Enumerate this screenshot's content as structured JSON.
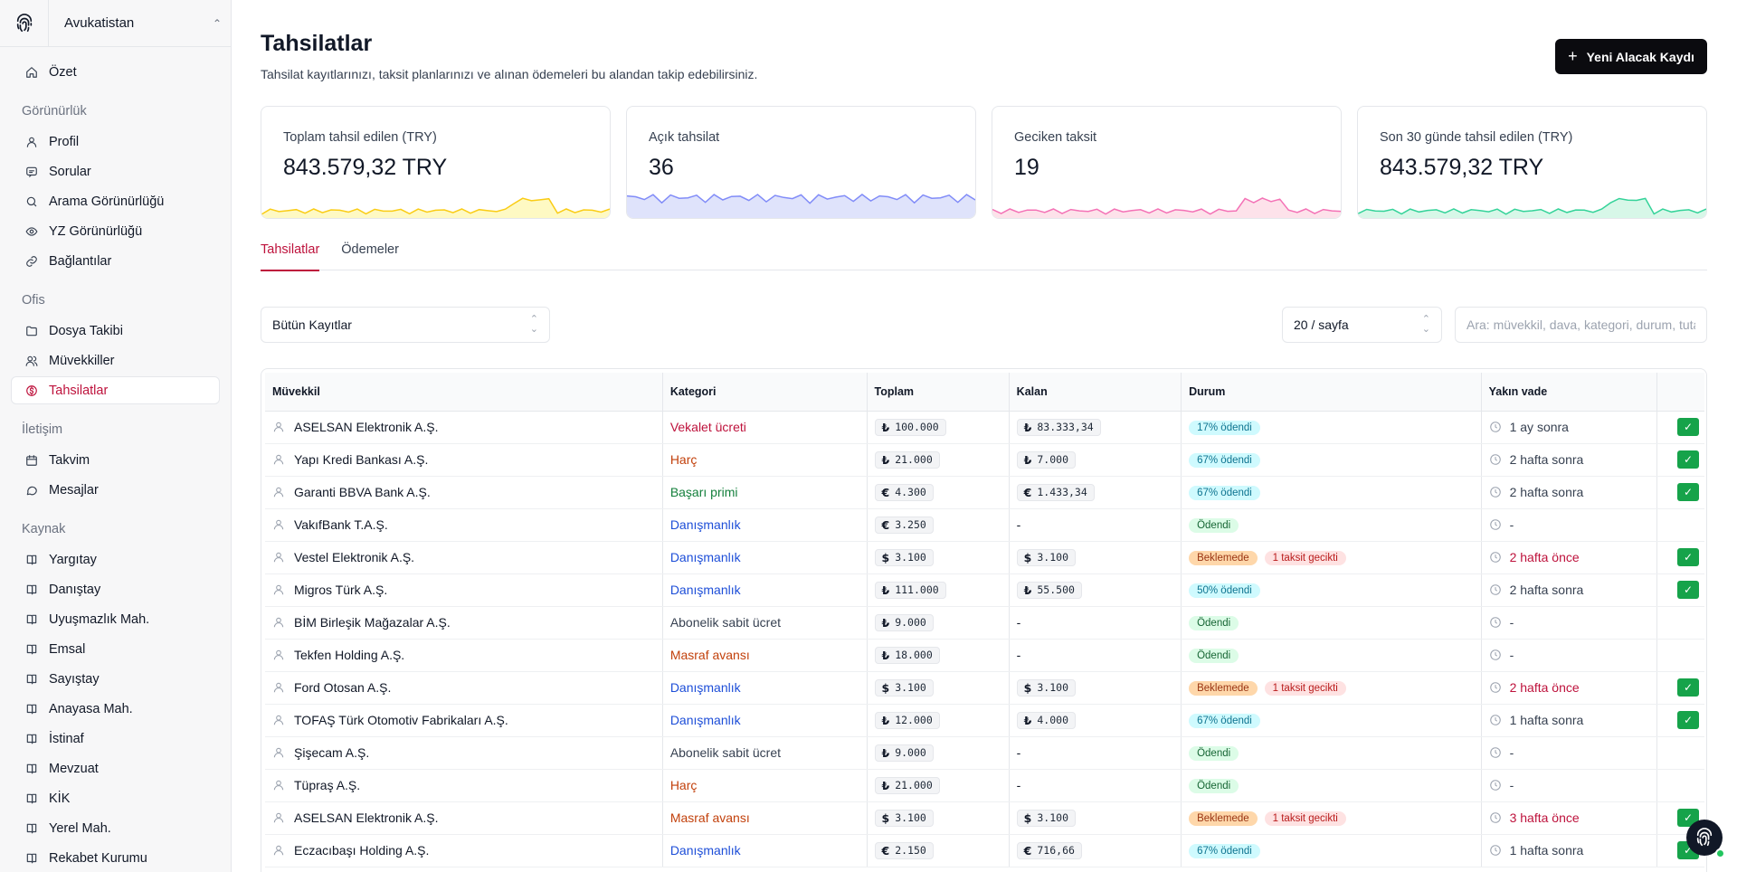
{
  "workspace": {
    "name": "Avukatistan"
  },
  "sidebar": {
    "top": [
      {
        "label": "Özet",
        "icon": "home-icon"
      }
    ],
    "sections": [
      {
        "title": "Görünürlük",
        "items": [
          {
            "label": "Profil",
            "icon": "user-icon"
          },
          {
            "label": "Sorular",
            "icon": "message-icon"
          },
          {
            "label": "Arama Görünürlüğü",
            "icon": "search-icon"
          },
          {
            "label": "YZ Görünürlüğü",
            "icon": "eye-icon"
          },
          {
            "label": "Bağlantılar",
            "icon": "link-icon"
          }
        ]
      },
      {
        "title": "Ofis",
        "items": [
          {
            "label": "Dosya Takibi",
            "icon": "folder-icon"
          },
          {
            "label": "Müvekkiller",
            "icon": "users-icon"
          },
          {
            "label": "Tahsilatlar",
            "icon": "currency-icon",
            "active": true
          }
        ]
      },
      {
        "title": "İletişim",
        "items": [
          {
            "label": "Takvim",
            "icon": "calendar-icon"
          },
          {
            "label": "Mesajlar",
            "icon": "chat-icon"
          }
        ]
      },
      {
        "title": "Kaynak",
        "items": [
          {
            "label": "Yargıtay",
            "icon": "book-icon"
          },
          {
            "label": "Danıştay",
            "icon": "book-icon"
          },
          {
            "label": "Uyuşmazlık Mah.",
            "icon": "book-icon"
          },
          {
            "label": "Emsal",
            "icon": "book-icon"
          },
          {
            "label": "Sayıştay",
            "icon": "book-icon"
          },
          {
            "label": "Anayasa Mah.",
            "icon": "book-icon"
          },
          {
            "label": "İstinaf",
            "icon": "book-icon"
          },
          {
            "label": "Mevzuat",
            "icon": "book-icon"
          },
          {
            "label": "KİK",
            "icon": "book-icon"
          },
          {
            "label": "Yerel Mah.",
            "icon": "book-icon"
          },
          {
            "label": "Rekabet Kurumu",
            "icon": "book-icon"
          }
        ]
      }
    ]
  },
  "header": {
    "title": "Tahsilatlar",
    "subtitle": "Tahsilat kayıtlarınızı, taksit planlarınızı ve alınan ödemeleri bu alandan takip edebilirsiniz.",
    "new_button": "Yeni Alacak Kaydı"
  },
  "cards": [
    {
      "label": "Toplam tahsil edilen (TRY)",
      "value": "843.579,32 TRY",
      "color": "#facc15",
      "fill": "#fef9c3"
    },
    {
      "label": "Açık tahsilat",
      "value": "36",
      "color": "#818cf8",
      "fill": "#dfe3fb"
    },
    {
      "label": "Geciken taksit",
      "value": "19",
      "color": "#f472b6",
      "fill": "#fde2ea"
    },
    {
      "label": "Son 30 günde tahsil edilen (TRY)",
      "value": "843.579,32 TRY",
      "color": "#34d399",
      "fill": "#d7f7e8"
    }
  ],
  "tabs": [
    {
      "label": "Tahsilatlar",
      "active": true
    },
    {
      "label": "Ödemeler"
    }
  ],
  "filters": {
    "records": "Bütün Kayıtlar",
    "per_page": "20 / sayfa",
    "search_placeholder": "Ara: müvekkil, dava, kategori, durum, tutar"
  },
  "table": {
    "headers": [
      "Müvekkil",
      "Kategori",
      "Toplam",
      "Kalan",
      "Durum",
      "Yakın vade",
      ""
    ],
    "rows": [
      {
        "client": "ASELSAN Elektronik A.Ş.",
        "category": "Vekalet ücreti",
        "cat_color": "#be123c",
        "total_cur": "₺",
        "total": "100.000",
        "rem_cur": "₺",
        "remaining": "83.333,34",
        "status": "17% ödendi",
        "status_type": "pct",
        "late": "",
        "due": "1 ay sonra",
        "due_late": false,
        "check": true
      },
      {
        "client": "Yapı Kredi Bankası A.Ş.",
        "category": "Harç",
        "cat_color": "#c2410c",
        "total_cur": "₺",
        "total": "21.000",
        "rem_cur": "₺",
        "remaining": "7.000",
        "status": "67% ödendi",
        "status_type": "pct",
        "late": "",
        "due": "2 hafta sonra",
        "due_late": false,
        "check": true
      },
      {
        "client": "Garanti BBVA Bank A.Ş.",
        "category": "Başarı primi",
        "cat_color": "#15803d",
        "total_cur": "€",
        "total": "4.300",
        "rem_cur": "€",
        "remaining": "1.433,34",
        "status": "67% ödendi",
        "status_type": "pct",
        "late": "",
        "due": "2 hafta sonra",
        "due_late": false,
        "check": true
      },
      {
        "client": "VakıfBank T.A.Ş.",
        "category": "Danışmanlık",
        "cat_color": "#1d4ed8",
        "total_cur": "€",
        "total": "3.250",
        "rem_cur": "",
        "remaining": "-",
        "status": "Ödendi",
        "status_type": "paid",
        "late": "",
        "due": "-",
        "due_late": false,
        "check": false
      },
      {
        "client": "Vestel Elektronik A.Ş.",
        "category": "Danışmanlık",
        "cat_color": "#1d4ed8",
        "total_cur": "$",
        "total": "3.100",
        "rem_cur": "$",
        "remaining": "3.100",
        "status": "Beklemede",
        "status_type": "wait",
        "late": "1 taksit gecikti",
        "due": "2 hafta önce",
        "due_late": true,
        "check": true
      },
      {
        "client": "Migros Türk A.Ş.",
        "category": "Danışmanlık",
        "cat_color": "#1d4ed8",
        "total_cur": "₺",
        "total": "111.000",
        "rem_cur": "₺",
        "remaining": "55.500",
        "status": "50% ödendi",
        "status_type": "pct",
        "late": "",
        "due": "2 hafta sonra",
        "due_late": false,
        "check": true
      },
      {
        "client": "BİM Birleşik Mağazalar A.Ş.",
        "category": "Abonelik sabit ücret",
        "cat_color": "#374151",
        "total_cur": "₺",
        "total": "9.000",
        "rem_cur": "",
        "remaining": "-",
        "status": "Ödendi",
        "status_type": "paid",
        "late": "",
        "due": "-",
        "due_late": false,
        "check": false
      },
      {
        "client": "Tekfen Holding A.Ş.",
        "category": "Masraf avansı",
        "cat_color": "#c2410c",
        "total_cur": "₺",
        "total": "18.000",
        "rem_cur": "",
        "remaining": "-",
        "status": "Ödendi",
        "status_type": "paid",
        "late": "",
        "due": "-",
        "due_late": false,
        "check": false
      },
      {
        "client": "Ford Otosan A.Ş.",
        "category": "Danışmanlık",
        "cat_color": "#1d4ed8",
        "total_cur": "$",
        "total": "3.100",
        "rem_cur": "$",
        "remaining": "3.100",
        "status": "Beklemede",
        "status_type": "wait",
        "late": "1 taksit gecikti",
        "due": "2 hafta önce",
        "due_late": true,
        "check": true
      },
      {
        "client": "TOFAŞ Türk Otomotiv Fabrikaları A.Ş.",
        "category": "Danışmanlık",
        "cat_color": "#1d4ed8",
        "total_cur": "₺",
        "total": "12.000",
        "rem_cur": "₺",
        "remaining": "4.000",
        "status": "67% ödendi",
        "status_type": "pct",
        "late": "",
        "due": "1 hafta sonra",
        "due_late": false,
        "check": true
      },
      {
        "client": "Şişecam A.Ş.",
        "category": "Abonelik sabit ücret",
        "cat_color": "#374151",
        "total_cur": "₺",
        "total": "9.000",
        "rem_cur": "",
        "remaining": "-",
        "status": "Ödendi",
        "status_type": "paid",
        "late": "",
        "due": "-",
        "due_late": false,
        "check": false
      },
      {
        "client": "Tüpraş A.Ş.",
        "category": "Harç",
        "cat_color": "#c2410c",
        "total_cur": "₺",
        "total": "21.000",
        "rem_cur": "",
        "remaining": "-",
        "status": "Ödendi",
        "status_type": "paid",
        "late": "",
        "due": "-",
        "due_late": false,
        "check": false
      },
      {
        "client": "ASELSAN Elektronik A.Ş.",
        "category": "Masraf avansı",
        "cat_color": "#c2410c",
        "total_cur": "$",
        "total": "3.100",
        "rem_cur": "$",
        "remaining": "3.100",
        "status": "Beklemede",
        "status_type": "wait",
        "late": "1 taksit gecikti",
        "due": "3 hafta önce",
        "due_late": true,
        "check": true
      },
      {
        "client": "Eczacıbaşı Holding A.Ş.",
        "category": "Danışmanlık",
        "cat_color": "#1d4ed8",
        "total_cur": "€",
        "total": "2.150",
        "rem_cur": "€",
        "remaining": "716,66",
        "status": "67% ödendi",
        "status_type": "pct",
        "late": "",
        "due": "1 hafta sonra",
        "due_late": false,
        "check": true
      }
    ]
  }
}
